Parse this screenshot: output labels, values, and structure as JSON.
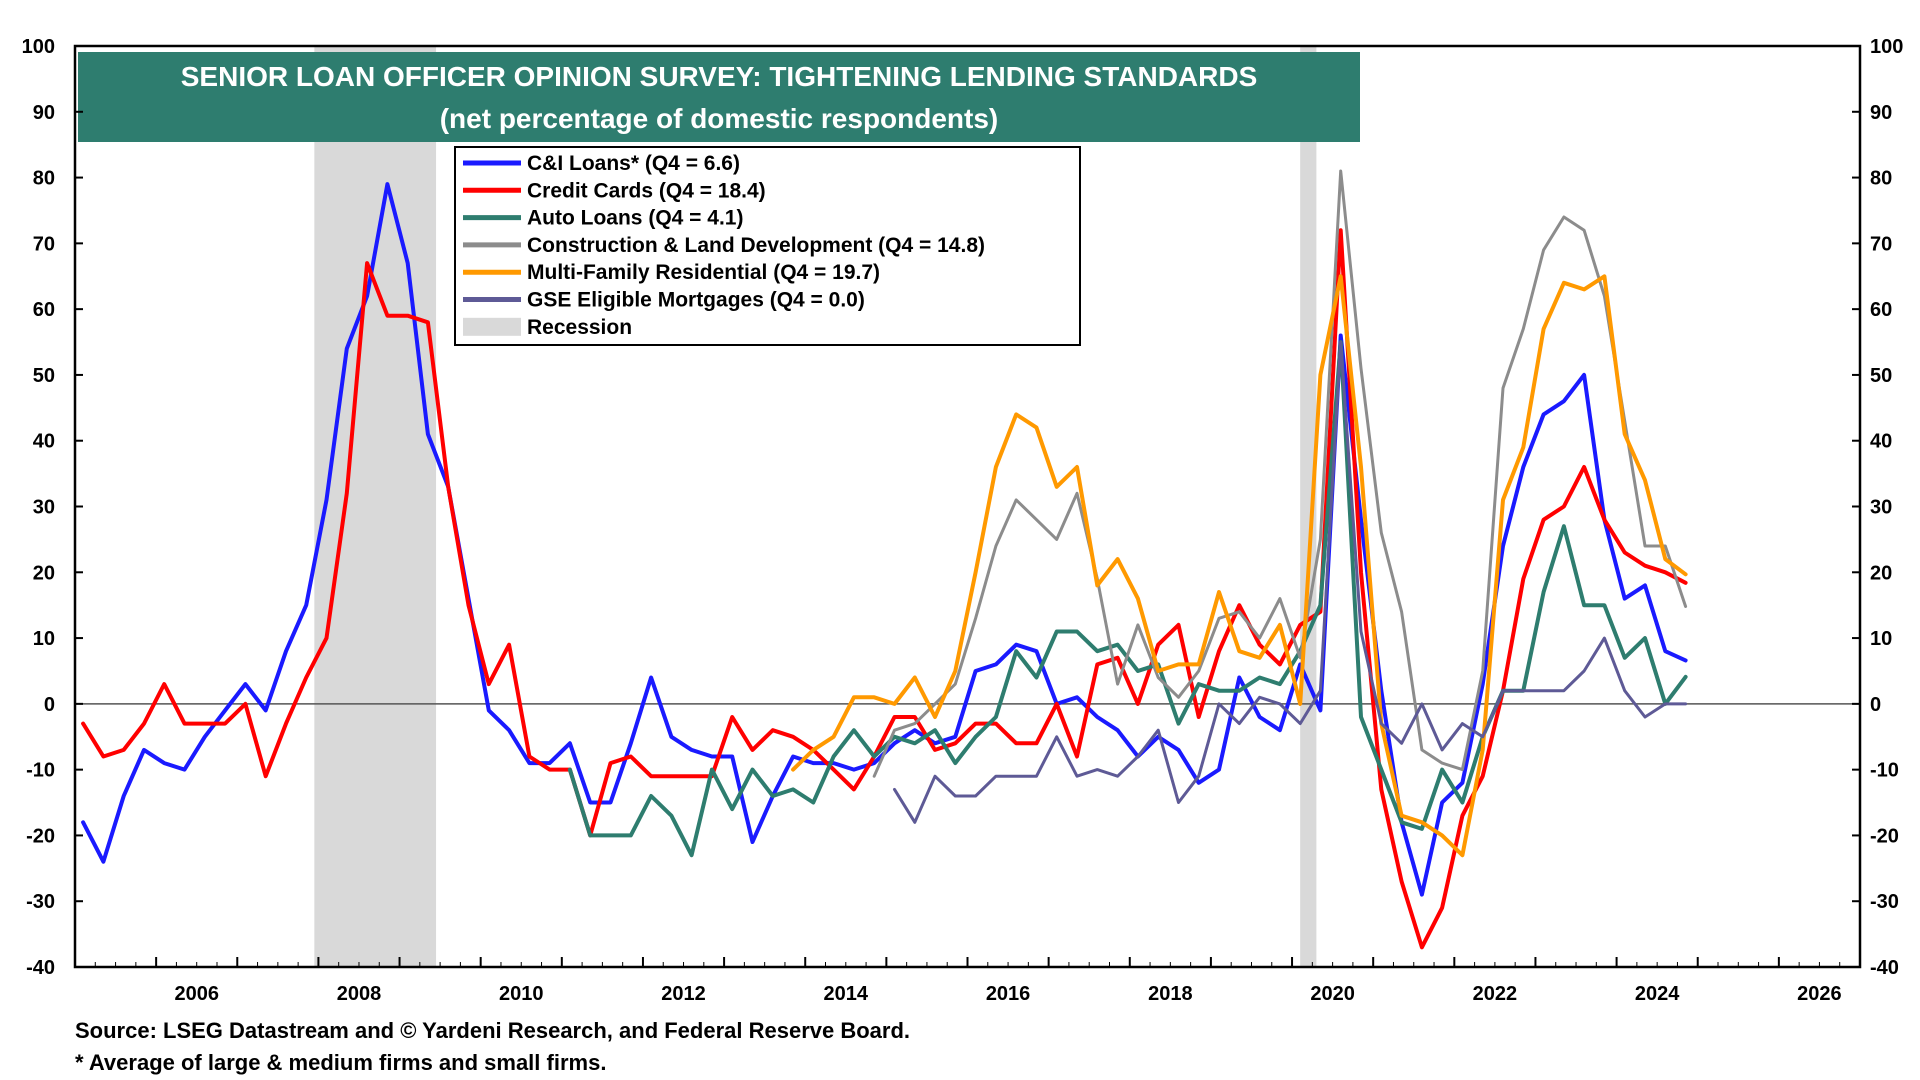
{
  "title": {
    "line1": "SENIOR LOAN OFFICER OPINION SURVEY: TIGHTENING LENDING STANDARDS",
    "line2": "(net percentage of domestic respondents)"
  },
  "footer": {
    "source": "Source: LSEG Datastream and © Yardeni Research, and Federal Reserve Board.",
    "note": "* Average of large & medium firms and small firms."
  },
  "colors": {
    "title_bg": "#2e7d6f",
    "recession": "#d9d9d9",
    "zero_line": "#555555"
  },
  "chart_data": {
    "type": "line",
    "ylim": [
      -40,
      100
    ],
    "xlim": [
      2005.0,
      2027.0
    ],
    "y_ticks": [
      "-40",
      "-30",
      "-20",
      "-10",
      "0",
      "10",
      "20",
      "30",
      "40",
      "50",
      "60",
      "70",
      "80",
      "90",
      "100"
    ],
    "x_ticks": [
      "2006",
      "2008",
      "2010",
      "2012",
      "2014",
      "2016",
      "2018",
      "2020",
      "2022",
      "2024",
      "2026"
    ],
    "grid": false,
    "legend_position": "top-left",
    "recessions": [
      {
        "start": 2007.95,
        "end": 2009.45
      },
      {
        "start": 2020.1,
        "end": 2020.3
      }
    ],
    "recession_label": "Recession",
    "series": [
      {
        "name": "C&I Loans* (Q4 = 6.6)",
        "color": "#1a1aff",
        "width": 4,
        "x": [
          2005.1,
          2005.35,
          2005.6,
          2005.85,
          2006.1,
          2006.35,
          2006.6,
          2006.85,
          2007.1,
          2007.35,
          2007.6,
          2007.85,
          2008.1,
          2008.35,
          2008.6,
          2008.85,
          2009.1,
          2009.35,
          2009.6,
          2009.85,
          2010.1,
          2010.35,
          2010.6,
          2010.85,
          2011.1,
          2011.35,
          2011.6,
          2011.85,
          2012.1,
          2012.35,
          2012.6,
          2012.85,
          2013.1,
          2013.35,
          2013.6,
          2013.85,
          2014.1,
          2014.35,
          2014.6,
          2014.85,
          2015.1,
          2015.35,
          2015.6,
          2015.85,
          2016.1,
          2016.35,
          2016.6,
          2016.85,
          2017.1,
          2017.35,
          2017.6,
          2017.85,
          2018.1,
          2018.35,
          2018.6,
          2018.85,
          2019.1,
          2019.35,
          2019.6,
          2019.85,
          2020.1,
          2020.35,
          2020.6,
          2020.85,
          2021.1,
          2021.35,
          2021.6,
          2021.85,
          2022.1,
          2022.35,
          2022.6,
          2022.85,
          2023.1,
          2023.35,
          2023.6,
          2023.85,
          2024.1,
          2024.35,
          2024.6,
          2024.85
        ],
        "values": [
          -18,
          -24,
          -14,
          -7,
          -9,
          -10,
          -5,
          -1,
          3,
          -1,
          8,
          15,
          31,
          54,
          62,
          79,
          67,
          41,
          33,
          16,
          -1,
          -4,
          -9,
          -9,
          -6,
          -15,
          -15,
          -6,
          4,
          -5,
          -7,
          -8,
          -8,
          -21,
          -14,
          -8,
          -9,
          -9,
          -10,
          -9,
          -6,
          -4,
          -6,
          -5,
          5,
          6,
          9,
          8,
          0,
          1,
          -2,
          -4,
          -8,
          -5,
          -7,
          -12,
          -10,
          4,
          -2,
          -4,
          6,
          -1,
          56,
          28,
          2,
          -18,
          -29,
          -15,
          -12,
          3,
          24,
          36,
          44,
          46,
          50,
          28,
          16,
          18,
          8,
          6.6
        ]
      },
      {
        "name": "Credit Cards (Q4 = 18.4)",
        "color": "#ff0000",
        "width": 4,
        "x": [
          2005.1,
          2005.35,
          2005.6,
          2005.85,
          2006.1,
          2006.35,
          2006.6,
          2006.85,
          2007.1,
          2007.35,
          2007.6,
          2007.85,
          2008.1,
          2008.35,
          2008.6,
          2008.85,
          2009.1,
          2009.35,
          2009.6,
          2009.85,
          2010.1,
          2010.35,
          2010.6,
          2010.85,
          2011.1,
          2011.35,
          2011.6,
          2011.85,
          2012.1,
          2012.35,
          2012.6,
          2012.85,
          2013.1,
          2013.35,
          2013.6,
          2013.85,
          2014.1,
          2014.35,
          2014.6,
          2014.85,
          2015.1,
          2015.35,
          2015.6,
          2015.85,
          2016.1,
          2016.35,
          2016.6,
          2016.85,
          2017.1,
          2017.35,
          2017.6,
          2017.85,
          2018.1,
          2018.35,
          2018.6,
          2018.85,
          2019.1,
          2019.35,
          2019.6,
          2019.85,
          2020.1,
          2020.35,
          2020.6,
          2020.85,
          2021.1,
          2021.35,
          2021.6,
          2021.85,
          2022.1,
          2022.35,
          2022.6,
          2022.85,
          2023.1,
          2023.35,
          2023.6,
          2023.85,
          2024.1,
          2024.35,
          2024.6,
          2024.85
        ],
        "values": [
          -3,
          -8,
          -7,
          -3,
          3,
          -3,
          -3,
          -3,
          0,
          -11,
          -3,
          4,
          10,
          32,
          67,
          59,
          59,
          58,
          33,
          15,
          3,
          9,
          -8,
          -10,
          -10,
          -20,
          -9,
          -8,
          -11,
          -11,
          -11,
          -11,
          -2,
          -7,
          -4,
          -5,
          -7,
          -10,
          -13,
          -8,
          -2,
          -2,
          -7,
          -6,
          -3,
          -3,
          -6,
          -6,
          0,
          -8,
          6,
          7,
          0,
          9,
          12,
          -2,
          8,
          15,
          9,
          6,
          12,
          14,
          72,
          20,
          -13,
          -27,
          -37,
          -31,
          -17,
          -11,
          2,
          19,
          28,
          30,
          36,
          28,
          23,
          21,
          20,
          18.4
        ]
      },
      {
        "name": "Auto Loans (Q4 = 4.1)",
        "color": "#2e7d6f",
        "width": 4,
        "x": [
          2011.1,
          2011.35,
          2011.6,
          2011.85,
          2012.1,
          2012.35,
          2012.6,
          2012.85,
          2013.1,
          2013.35,
          2013.6,
          2013.85,
          2014.1,
          2014.35,
          2014.6,
          2014.85,
          2015.1,
          2015.35,
          2015.6,
          2015.85,
          2016.1,
          2016.35,
          2016.6,
          2016.85,
          2017.1,
          2017.35,
          2017.6,
          2017.85,
          2018.1,
          2018.35,
          2018.6,
          2018.85,
          2019.1,
          2019.35,
          2019.6,
          2019.85,
          2020.1,
          2020.35,
          2020.6,
          2020.85,
          2021.1,
          2021.35,
          2021.6,
          2021.85,
          2022.1,
          2022.35,
          2022.6,
          2022.85,
          2023.1,
          2023.35,
          2023.6,
          2023.85,
          2024.1,
          2024.35,
          2024.6,
          2024.85
        ],
        "values": [
          -10,
          -20,
          -20,
          -20,
          -14,
          -17,
          -23,
          -10,
          -16,
          -10,
          -14,
          -13,
          -15,
          -8,
          -4,
          -8,
          -5,
          -6,
          -4,
          -9,
          -5,
          -2,
          8,
          4,
          11,
          11,
          8,
          9,
          5,
          6,
          -3,
          3,
          2,
          2,
          4,
          3,
          8,
          15,
          55,
          -2,
          -10,
          -18,
          -19,
          -10,
          -15,
          -5,
          2,
          2,
          17,
          27,
          15,
          15,
          7,
          10,
          0,
          4.1
        ]
      },
      {
        "name": "Construction & Land Development (Q4 = 14.8)",
        "color": "#8c8c8c",
        "width": 3,
        "x": [
          2014.85,
          2015.1,
          2015.35,
          2015.6,
          2015.85,
          2016.1,
          2016.35,
          2016.6,
          2016.85,
          2017.1,
          2017.35,
          2017.6,
          2017.85,
          2018.1,
          2018.35,
          2018.6,
          2018.85,
          2019.1,
          2019.35,
          2019.6,
          2019.85,
          2020.1,
          2020.35,
          2020.6,
          2020.85,
          2021.1,
          2021.35,
          2021.6,
          2021.85,
          2022.1,
          2022.35,
          2022.6,
          2022.85,
          2023.1,
          2023.35,
          2023.6,
          2023.85,
          2024.1,
          2024.35,
          2024.6,
          2024.85
        ],
        "values": [
          -11,
          -4,
          -3,
          0,
          3,
          13,
          24,
          31,
          28,
          25,
          32,
          19,
          3,
          12,
          4,
          1,
          5,
          13,
          14,
          10,
          16,
          7,
          25,
          81,
          51,
          26,
          14,
          -7,
          -9,
          -10,
          5,
          48,
          57,
          69,
          74,
          72,
          62,
          43,
          24,
          24,
          14.8
        ]
      },
      {
        "name": "Multi-Family Residential (Q4 = 19.7)",
        "color": "#ff9900",
        "width": 4,
        "x": [
          2013.85,
          2014.1,
          2014.35,
          2014.6,
          2014.85,
          2015.1,
          2015.35,
          2015.6,
          2015.85,
          2016.1,
          2016.35,
          2016.6,
          2016.85,
          2017.1,
          2017.35,
          2017.6,
          2017.85,
          2018.1,
          2018.35,
          2018.6,
          2018.85,
          2019.1,
          2019.35,
          2019.6,
          2019.85,
          2020.1,
          2020.35,
          2020.6,
          2020.85,
          2021.1,
          2021.35,
          2021.6,
          2021.85,
          2022.1,
          2022.35,
          2022.6,
          2022.85,
          2023.1,
          2023.35,
          2023.6,
          2023.85,
          2024.1,
          2024.35,
          2024.6,
          2024.85
        ],
        "values": [
          -10,
          -7,
          -5,
          1,
          1,
          0,
          4,
          -2,
          5,
          20,
          36,
          44,
          42,
          33,
          36,
          18,
          22,
          16,
          5,
          6,
          6,
          17,
          8,
          7,
          12,
          0,
          50,
          65,
          36,
          -3,
          -17,
          -18,
          -20,
          -23,
          -7,
          31,
          39,
          57,
          64,
          63,
          65,
          41,
          34,
          22,
          19.7
        ]
      },
      {
        "name": "GSE Eligible Mortgages (Q4 = 0.0)",
        "color": "#5e5a96",
        "width": 3,
        "x": [
          2015.1,
          2015.35,
          2015.6,
          2015.85,
          2016.1,
          2016.35,
          2016.6,
          2016.85,
          2017.1,
          2017.35,
          2017.6,
          2017.85,
          2018.1,
          2018.35,
          2018.6,
          2018.85,
          2019.1,
          2019.35,
          2019.6,
          2019.85,
          2020.1,
          2020.35,
          2020.6,
          2020.85,
          2021.1,
          2021.35,
          2021.6,
          2021.85,
          2022.1,
          2022.35,
          2022.6,
          2022.85,
          2023.1,
          2023.35,
          2023.6,
          2023.85,
          2024.1,
          2024.35,
          2024.6,
          2024.85
        ],
        "values": [
          -13,
          -18,
          -11,
          -14,
          -14,
          -11,
          -11,
          -11,
          -5,
          -11,
          -10,
          -11,
          -8,
          -4,
          -15,
          -11,
          0,
          -3,
          1,
          0,
          -3,
          2,
          55,
          11,
          -3,
          -6,
          0,
          -7,
          -3,
          -5,
          2,
          2,
          2,
          2,
          5,
          10,
          2,
          -2,
          0,
          0.0
        ]
      }
    ]
  }
}
